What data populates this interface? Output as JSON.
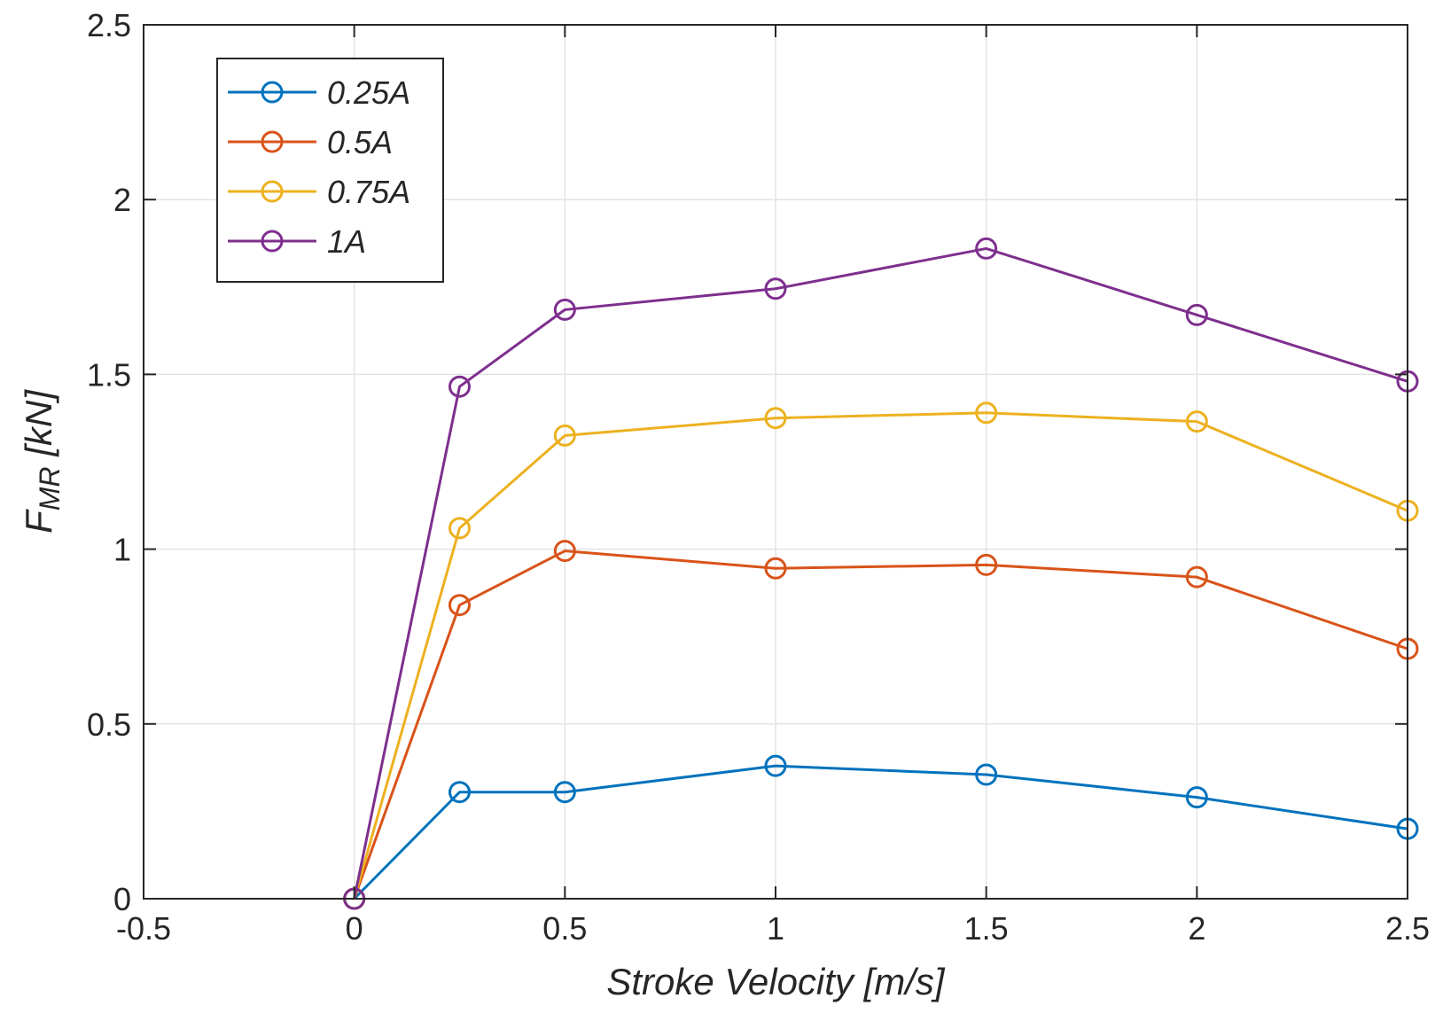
{
  "chart_data": {
    "type": "line",
    "title": "",
    "xlabel": "Stroke Velocity [m/s]",
    "ylabel": {
      "main": "F",
      "sub": "MR",
      "unit": " [kN]"
    },
    "xlim": [
      -0.5,
      2.5
    ],
    "ylim": [
      0,
      2.5
    ],
    "x_ticks": [
      -0.5,
      0,
      0.5,
      1,
      1.5,
      2,
      2.5
    ],
    "x_tick_labels": [
      "-0.5",
      "0",
      "0.5",
      "1",
      "1.5",
      "2",
      "2.5"
    ],
    "y_ticks": [
      0,
      0.5,
      1,
      1.5,
      2,
      2.5
    ],
    "y_tick_labels": [
      "0",
      "0.5",
      "1",
      "1.5",
      "2",
      "2.5"
    ],
    "grid": true,
    "legend_position": "top-left",
    "x": [
      0,
      0.25,
      0.5,
      1,
      1.5,
      2,
      2.5
    ],
    "series": [
      {
        "name": "0.25A",
        "color": "#0072BD",
        "values": [
          0,
          0.305,
          0.305,
          0.38,
          0.355,
          0.29,
          0.2
        ]
      },
      {
        "name": "0.5A",
        "color": "#D95319",
        "values": [
          0,
          0.84,
          0.995,
          0.945,
          0.955,
          0.92,
          0.715
        ]
      },
      {
        "name": "0.75A",
        "color": "#EDB120",
        "values": [
          0,
          1.06,
          1.325,
          1.375,
          1.39,
          1.365,
          1.11
        ]
      },
      {
        "name": "1A",
        "color": "#7E2F8E",
        "values": [
          0,
          1.465,
          1.685,
          1.745,
          1.86,
          1.67,
          1.48
        ]
      }
    ]
  }
}
